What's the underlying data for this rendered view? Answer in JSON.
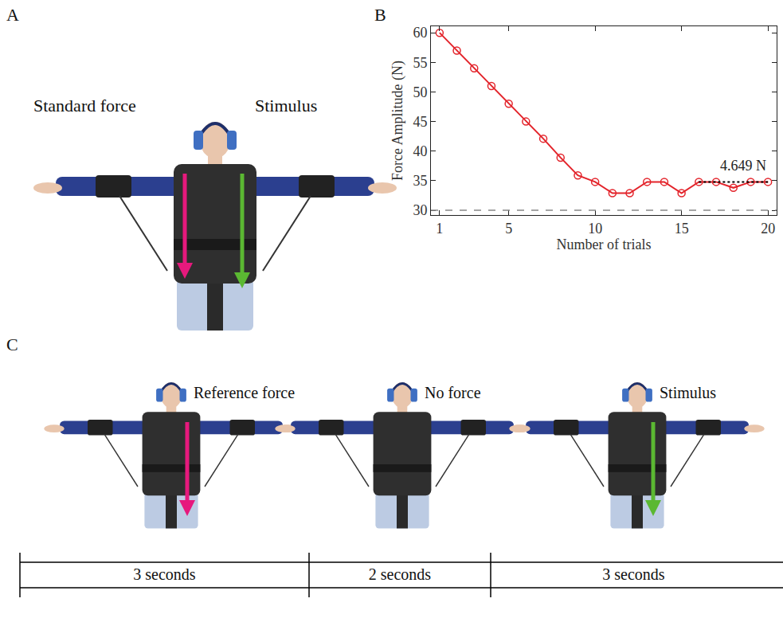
{
  "panel_a": {
    "letter": "A",
    "left_label": "Standard force",
    "left_color": "#e6197d",
    "right_label": "Stimulus",
    "right_color": "#5bb832"
  },
  "chart_data": {
    "panel_letter": "B",
    "type": "line",
    "x": [
      1,
      2,
      3,
      4,
      5,
      6,
      7,
      8,
      9,
      10,
      11,
      12,
      13,
      14,
      15,
      16,
      17,
      18,
      19,
      20
    ],
    "values": [
      60,
      57,
      54,
      51,
      48,
      45,
      42.1,
      38.9,
      35.9,
      34.8,
      32.9,
      32.9,
      34.8,
      34.8,
      32.9,
      34.8,
      34.8,
      33.8,
      34.8,
      34.8
    ],
    "color": "#e3242b",
    "marker": "circle-open",
    "line_style": "solid",
    "xlabel": "Number of trials",
    "ylabel": "Force Amplitude (N)",
    "xlim": [
      0.5,
      20.5
    ],
    "ylim": [
      29.2,
      61.1
    ],
    "xticks": [
      1,
      5,
      10,
      15,
      20
    ],
    "yticks": [
      30,
      35,
      40,
      45,
      50,
      55,
      60
    ],
    "grid": false,
    "reference_y": 30,
    "annotation": {
      "text": "4.649 N",
      "x": [
        16,
        20
      ],
      "y": 34.8
    }
  },
  "panel_c": {
    "letter": "C",
    "frames": [
      {
        "label": "Reference force",
        "arrow_color": "#e6197d"
      },
      {
        "label": "No force",
        "arrow_color": null
      },
      {
        "label": "Stimulus",
        "arrow_color": "#5bb832"
      }
    ],
    "timeline": [
      "3 seconds",
      "2 seconds",
      "3 seconds"
    ]
  }
}
